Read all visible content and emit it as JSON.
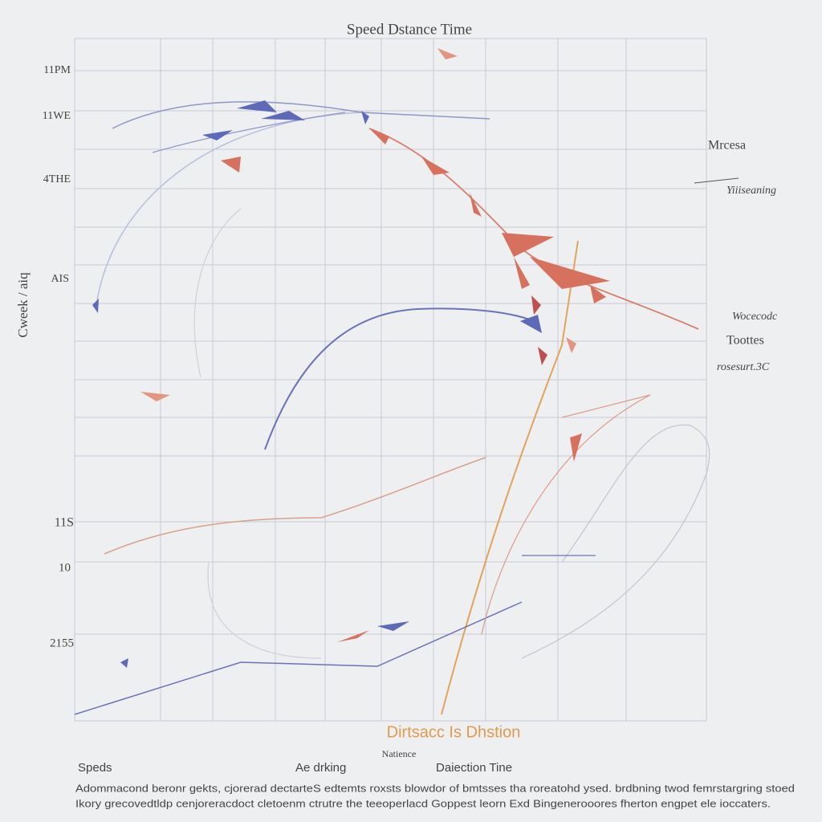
{
  "header": {
    "title": "Speed Dstance Time"
  },
  "y_axis": {
    "title": "Cweek / aiq",
    "labels": [
      "11PM",
      "11WE",
      "4THE",
      "AIS",
      "11S",
      "10",
      "2155"
    ]
  },
  "right_labels": [
    "Mrcesa",
    "Yiiiseaning",
    "Wocecodc",
    "Toottes",
    "rosesurt.3C"
  ],
  "x_axis": {
    "title": "Dirtsacc Is Dhstion",
    "subtitle": "Natience"
  },
  "footer": {
    "labels": [
      "Speds",
      "Ae drking",
      "Daiection Tine"
    ],
    "caption": [
      "Adommacond beronr gekts, cjorerad dectarteS edtemts roxsts blowdor of bmtsses tha roreatohd ysed. brdbning twod femrstargring stoed",
      "Ikory grecovedtldp cenjoreracdoct cletoenm ctrutre the teeoperlacd Goppest leorn Exd Bingenerooores fherton engpet ele ioccaters."
    ]
  }
}
